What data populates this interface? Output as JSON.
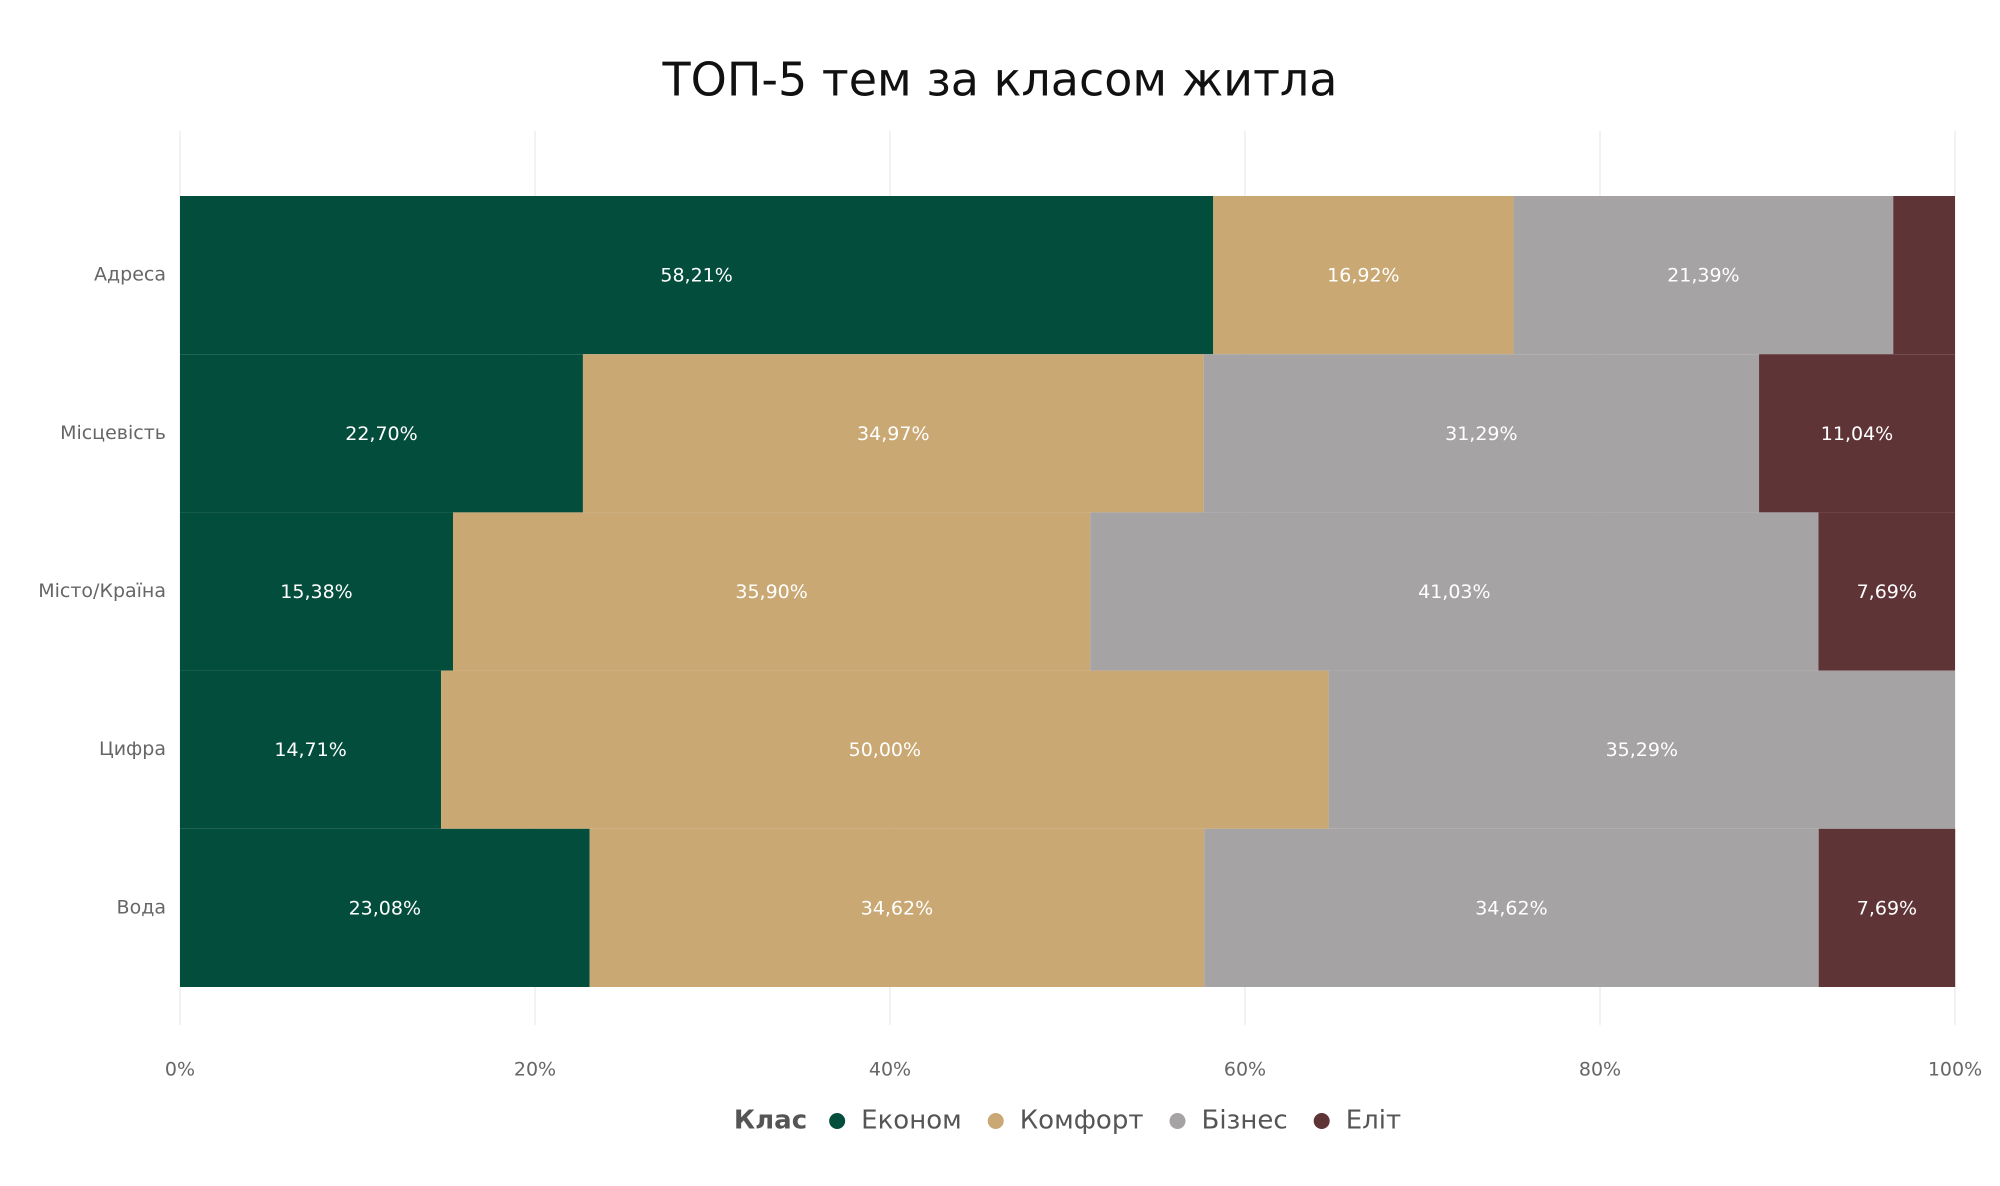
{
  "chart_data": {
    "type": "stacked-bar-horizontal",
    "title": "ТОП-5 тем за класом житла",
    "categories": [
      "Адреса",
      "Місцевість",
      "Місто/Країна",
      "Цифра",
      "Вода"
    ],
    "legend_title": "Клас",
    "series": [
      {
        "name": "Економ",
        "color": "#034d3c",
        "values": [
          58.21,
          22.7,
          15.38,
          14.71,
          23.08
        ],
        "value_labels": [
          "58,21%",
          "22,70%",
          "15,38%",
          "14,71%",
          "23,08%"
        ]
      },
      {
        "name": "Комфорт",
        "color": "#c9a873",
        "values": [
          16.92,
          34.97,
          35.9,
          50.0,
          34.62
        ],
        "value_labels": [
          "16,92%",
          "34,97%",
          "35,90%",
          "50,00%",
          "34,62%"
        ]
      },
      {
        "name": "Бізнес",
        "color": "#a5a3a4",
        "values": [
          21.39,
          31.29,
          41.03,
          35.29,
          34.62
        ],
        "value_labels": [
          "21,39%",
          "31,29%",
          "41,03%",
          "35,29%",
          "34,62%"
        ]
      },
      {
        "name": "Еліт",
        "color": "#5f3436",
        "values": [
          3.48,
          11.04,
          7.69,
          null,
          7.69
        ],
        "value_labels": [
          null,
          "11,04%",
          "7,69%",
          null,
          "7,69%"
        ]
      }
    ],
    "xlim": [
      0,
      100
    ],
    "xticks": [
      {
        "value": 0,
        "label": "0%"
      },
      {
        "value": 20,
        "label": "20%"
      },
      {
        "value": 40,
        "label": "40%"
      },
      {
        "value": 60,
        "label": "60%"
      },
      {
        "value": 80,
        "label": "80%"
      },
      {
        "value": 100,
        "label": "100%"
      }
    ],
    "grid": true
  }
}
